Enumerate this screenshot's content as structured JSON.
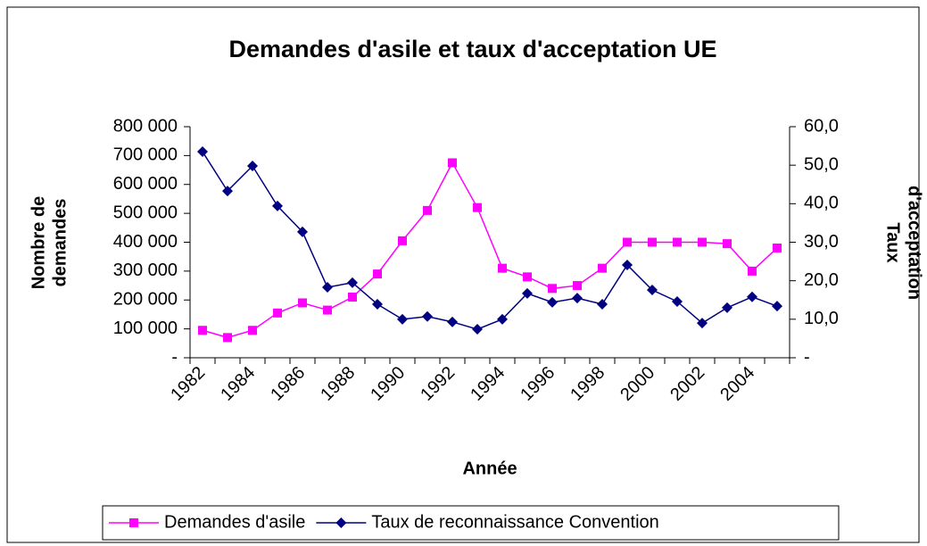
{
  "chart_data": {
    "type": "line",
    "title": "Demandes d'asile et taux d'acceptation UE",
    "xlabel": "Année",
    "ylabel": [
      "Nombre de",
      "demandes"
    ],
    "y2label": [
      "Taux",
      "d'acceptation"
    ],
    "categories": [
      "1982",
      null,
      "1984",
      null,
      "1986",
      null,
      "1988",
      null,
      "1990",
      null,
      "1992",
      null,
      "1994",
      null,
      "1996",
      null,
      "1998",
      null,
      "2000",
      null,
      "2002",
      null,
      "2004",
      null
    ],
    "ylim": [
      0,
      800000
    ],
    "yticks": [
      {
        "value": 0,
        "label": "-"
      },
      {
        "value": 100000,
        "label": "100 000"
      },
      {
        "value": 200000,
        "label": "200 000"
      },
      {
        "value": 300000,
        "label": "300 000"
      },
      {
        "value": 400000,
        "label": "400 000"
      },
      {
        "value": 500000,
        "label": "500 000"
      },
      {
        "value": 600000,
        "label": "600 000"
      },
      {
        "value": 700000,
        "label": "700 000"
      },
      {
        "value": 800000,
        "label": "800 000"
      }
    ],
    "y2lim": [
      0,
      60
    ],
    "y2ticks": [
      {
        "value": 0,
        "label": "-"
      },
      {
        "value": 10,
        "label": "10,0"
      },
      {
        "value": 20,
        "label": "20,0"
      },
      {
        "value": 30,
        "label": "30,0"
      },
      {
        "value": 40,
        "label": "40,0"
      },
      {
        "value": 50,
        "label": "50,0"
      },
      {
        "value": 60,
        "label": "60,0"
      }
    ],
    "legend": "bottom",
    "series": [
      {
        "name": "Demandes d'asile",
        "color": "#ff00ff",
        "marker": "square",
        "values": [
          95000,
          70000,
          95000,
          155000,
          190000,
          165000,
          210000,
          290000,
          405000,
          510000,
          675000,
          520000,
          310000,
          280000,
          240000,
          250000,
          310000,
          400000,
          400000,
          400000,
          400000,
          395000,
          300000,
          380000
        ]
      },
      {
        "name": "Taux de reconnaissance Convention",
        "color": "#000080",
        "marker": "diamond",
        "axis": "y2",
        "values": [
          53.5,
          43.3,
          49.8,
          39.4,
          32.7,
          18.3,
          19.5,
          13.9,
          10.0,
          10.7,
          9.3,
          7.4,
          10.0,
          16.7,
          14.4,
          15.5,
          13.9,
          24.1,
          17.6,
          14.6,
          9.0,
          13.0,
          15.8,
          13.4
        ]
      }
    ]
  }
}
